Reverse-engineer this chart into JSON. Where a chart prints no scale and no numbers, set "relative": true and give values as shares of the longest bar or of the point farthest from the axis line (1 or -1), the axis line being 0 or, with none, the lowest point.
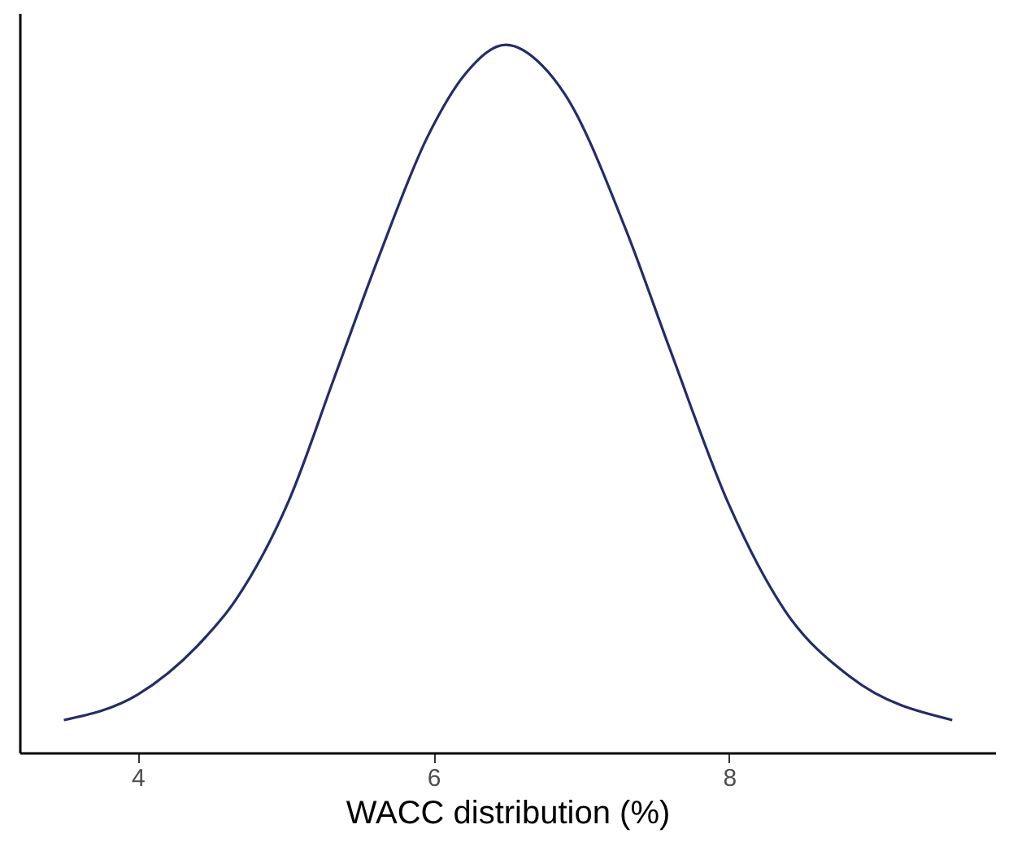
{
  "chart_data": {
    "type": "line",
    "relative": true,
    "xlabel": "WACC distribution (%)",
    "xlim": [
      3.2,
      9.8
    ],
    "xticks": [
      4,
      6,
      8
    ],
    "grid": false,
    "marker": "none",
    "line_style": "solid",
    "series": [
      {
        "color": "#262c66",
        "x": [
          3.5,
          4.0,
          4.4,
          4.66,
          5.03,
          5.33,
          5.63,
          5.96,
          6.22,
          6.49,
          6.74,
          6.89,
          7.3,
          7.6,
          8.0,
          8.38,
          8.82,
          9.51
        ],
        "values": [
          0.046,
          0.082,
          0.15,
          0.215,
          0.36,
          0.53,
          0.7,
          0.87,
          0.96,
          1,
          0.97,
          0.93,
          0.74,
          0.57,
          0.35,
          0.2,
          0.107,
          0.046
        ]
      }
    ]
  }
}
